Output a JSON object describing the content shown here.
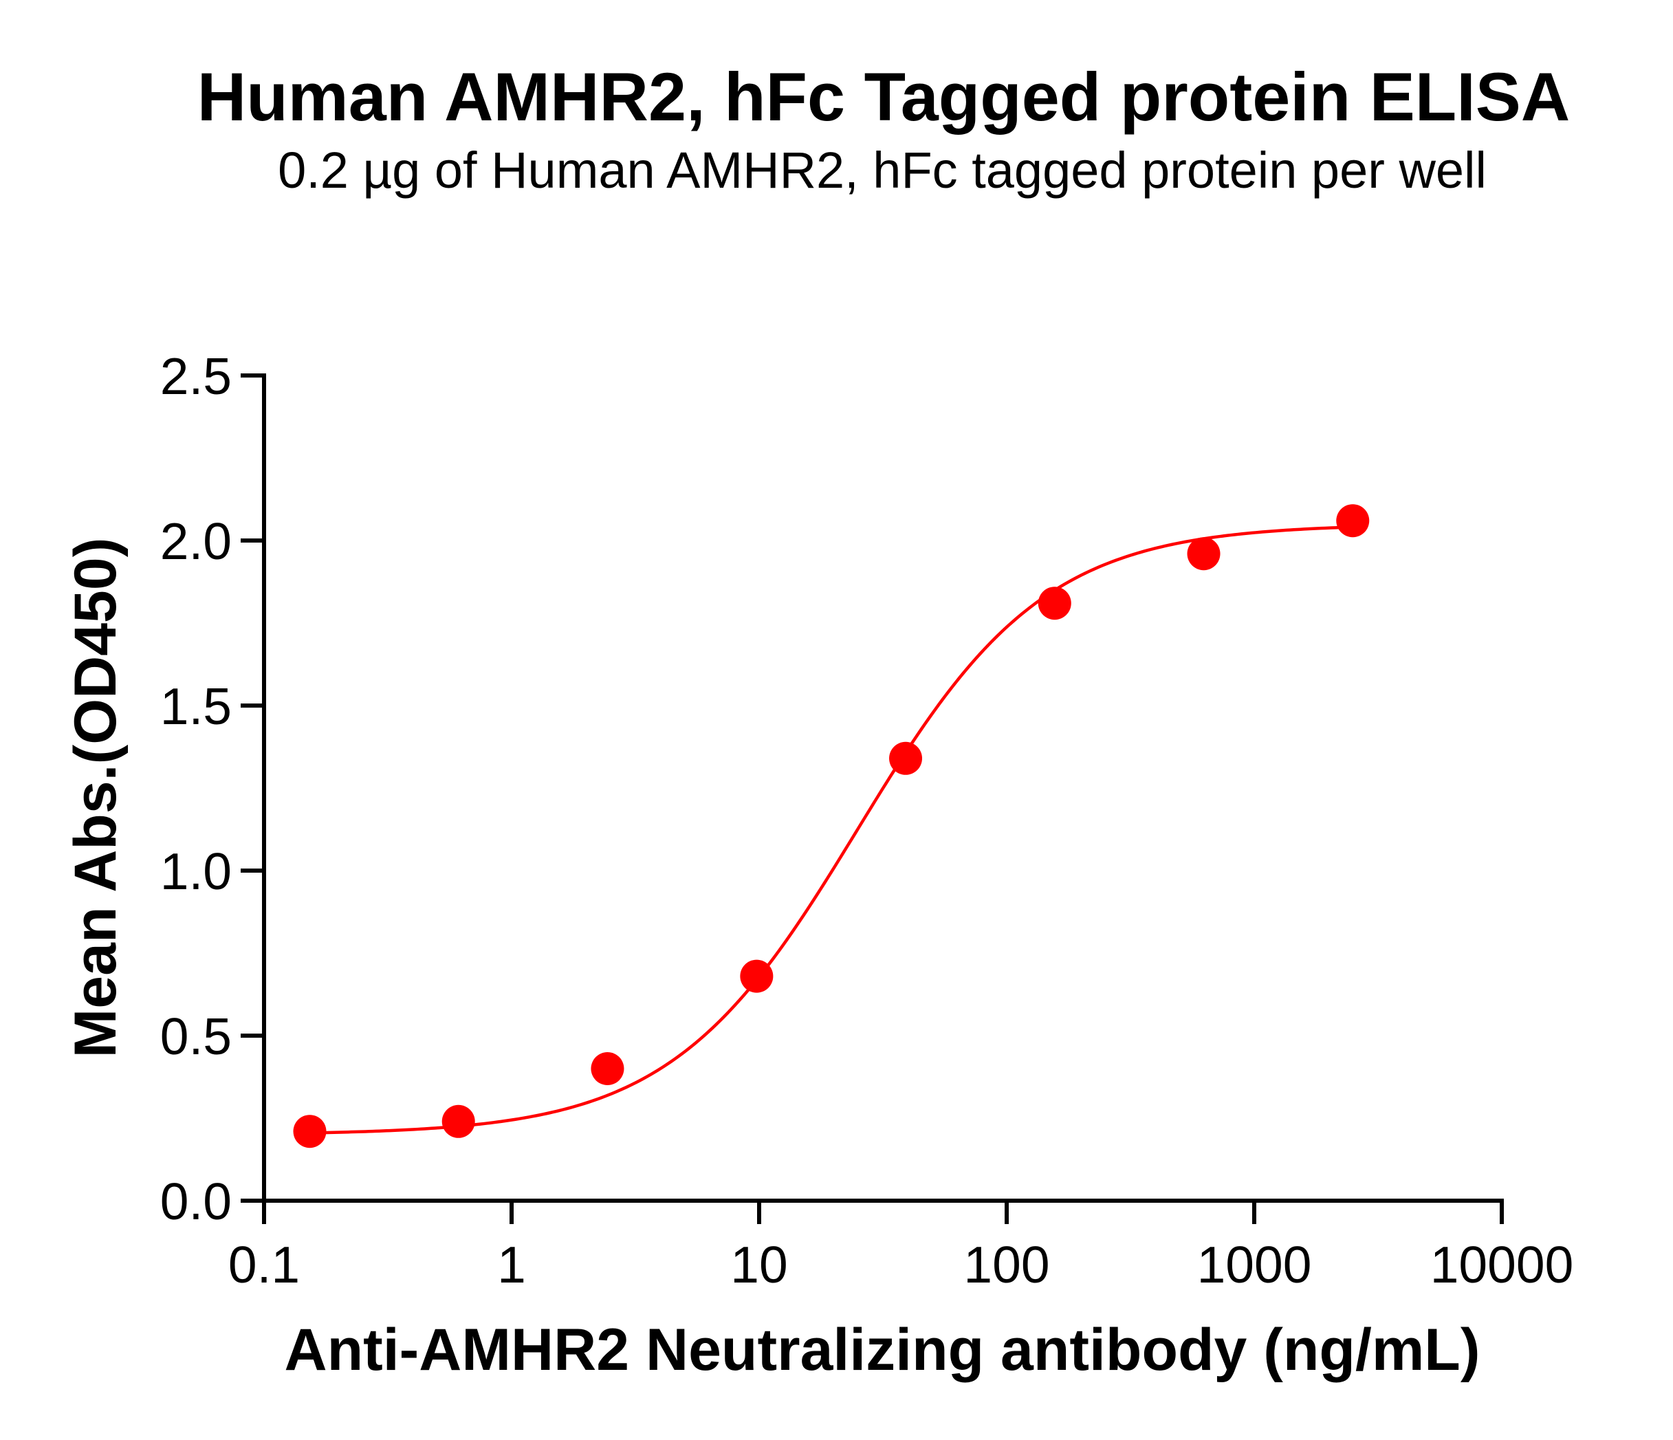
{
  "title": "Human AMHR2, hFc Tagged protein ELISA",
  "subtitle": "0.2 µg of Human AMHR2, hFc tagged protein per well",
  "colors": {
    "series": "#FF0000",
    "axis": "#000000",
    "background": "#FFFFFF"
  },
  "chart_data": {
    "type": "scatter",
    "title": "Human AMHR2, hFc Tagged protein ELISA",
    "subtitle": "0.2 µg of Human AMHR2, hFc tagged protein per well",
    "xlabel": "Anti-AMHR2 Neutralizing antibody (ng/mL)",
    "ylabel": "Mean Abs.(OD450)",
    "xscale": "log",
    "xlim": [
      0.1,
      10000
    ],
    "ylim": [
      0,
      2.5
    ],
    "xticks": [
      0.1,
      1,
      10,
      100,
      1000,
      10000
    ],
    "xtick_labels": [
      "0.1",
      "1",
      "10",
      "100",
      "1000",
      "10000"
    ],
    "yticks": [
      0.0,
      0.5,
      1.0,
      1.5,
      2.0,
      2.5
    ],
    "ytick_labels": [
      "0.0",
      "0.5",
      "1.0",
      "1.5",
      "2.0",
      "2.5"
    ],
    "grid": false,
    "legend": null,
    "series": [
      {
        "name": "Human AMHR2, hFc",
        "color": "#FF0000",
        "marker": "circle",
        "x": [
          0.153,
          0.61,
          2.44,
          9.77,
          39.06,
          156.25,
          625,
          2500
        ],
        "y": [
          0.21,
          0.24,
          0.4,
          0.68,
          1.34,
          1.81,
          1.96,
          2.06
        ],
        "fit": {
          "model": "4PL",
          "bottom": 0.2,
          "top": 2.05,
          "ec50": 25,
          "hill": 1.15
        }
      }
    ]
  }
}
